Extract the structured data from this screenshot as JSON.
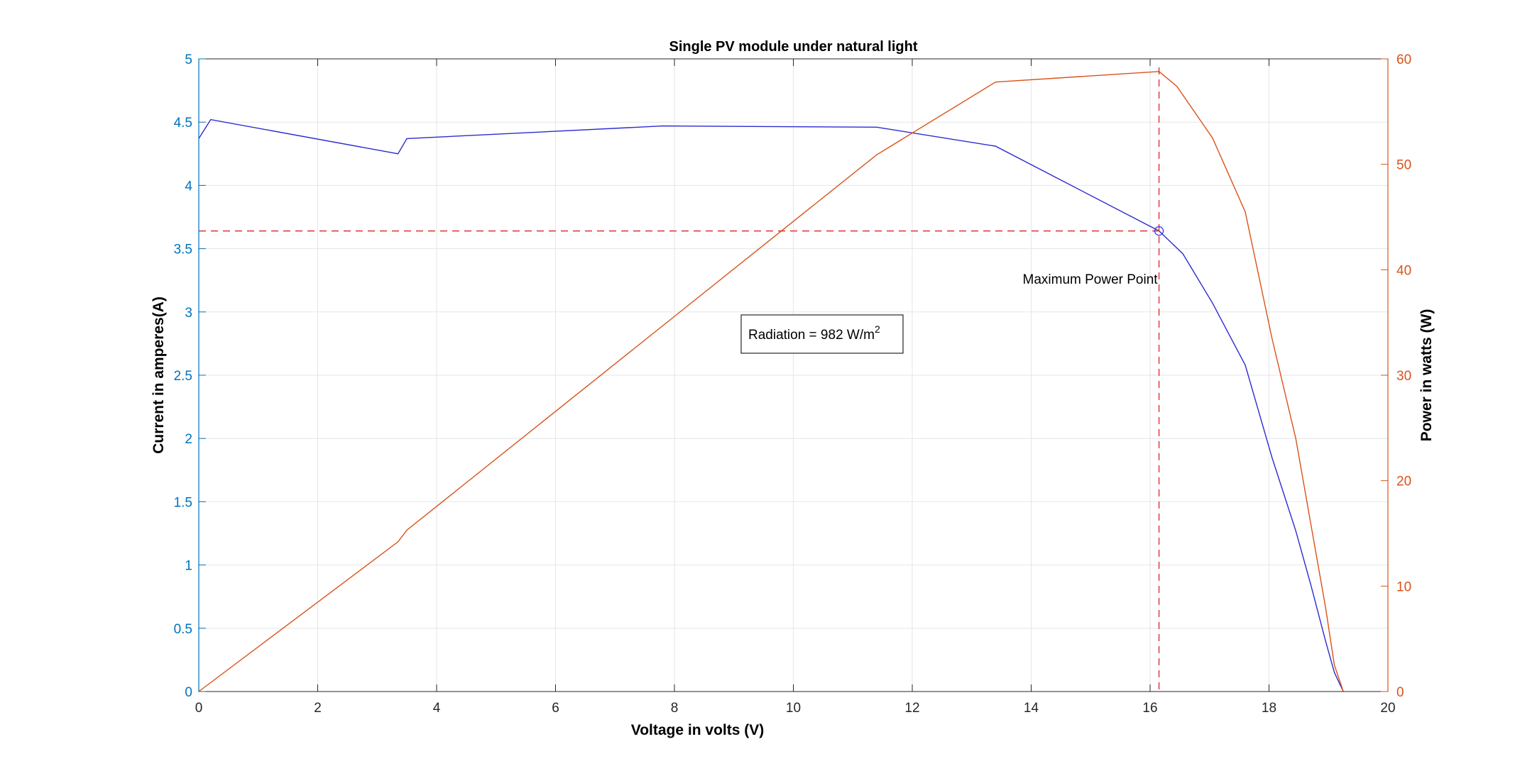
{
  "chart_data": {
    "type": "line",
    "title": "Single PV module under natural light",
    "xlabel": "Voltage in volts (V)",
    "ylabel_left": "Current in amperes(A)",
    "ylabel_right": "Power in watts (W)",
    "xlim": [
      0,
      20
    ],
    "ylim_left": [
      0,
      5
    ],
    "ylim_right": [
      0,
      60
    ],
    "x_ticks": [
      "0",
      "2",
      "4",
      "6",
      "8",
      "10",
      "12",
      "14",
      "16",
      "18",
      "20"
    ],
    "y_left_ticks": [
      "0",
      "0.5",
      "1",
      "1.5",
      "2",
      "2.5",
      "3",
      "3.5",
      "4",
      "4.5",
      "5"
    ],
    "y_right_ticks": [
      "0",
      "10",
      "20",
      "30",
      "40",
      "50",
      "60"
    ],
    "grid": true,
    "colors": {
      "current": "#2b2bd0",
      "power": "#d95319",
      "mpp": "#e03030",
      "left_axis": "#0072bd",
      "right_axis": "#d95319"
    },
    "series": [
      {
        "name": "Current",
        "axis": "left",
        "x": [
          0,
          0.2,
          3.35,
          3.5,
          7.8,
          11.4,
          13.4,
          16.15,
          16.55,
          17.05,
          17.6,
          18.05,
          18.45,
          18.7,
          18.95,
          19.1,
          19.25
        ],
        "values": [
          4.37,
          4.52,
          4.25,
          4.37,
          4.47,
          4.46,
          4.31,
          3.64,
          3.46,
          3.07,
          2.58,
          1.85,
          1.27,
          0.85,
          0.4,
          0.15,
          0
        ]
      },
      {
        "name": "Power",
        "axis": "right",
        "x": [
          0,
          3.35,
          3.5,
          11.4,
          13.4,
          16.15,
          16.45,
          17.05,
          17.6,
          18.05,
          18.45,
          18.7,
          18.95,
          19.1,
          19.25
        ],
        "values": [
          0,
          14.2,
          15.3,
          50.9,
          57.8,
          58.8,
          57.4,
          52.5,
          45.5,
          33.5,
          24,
          16,
          8,
          2.5,
          0
        ]
      }
    ],
    "mpp": {
      "x": 16.15,
      "current": 3.64,
      "label": "Maximum Power Point"
    },
    "legend_box": {
      "text": "Radiation = 982 W/m",
      "superscript": "2"
    }
  }
}
